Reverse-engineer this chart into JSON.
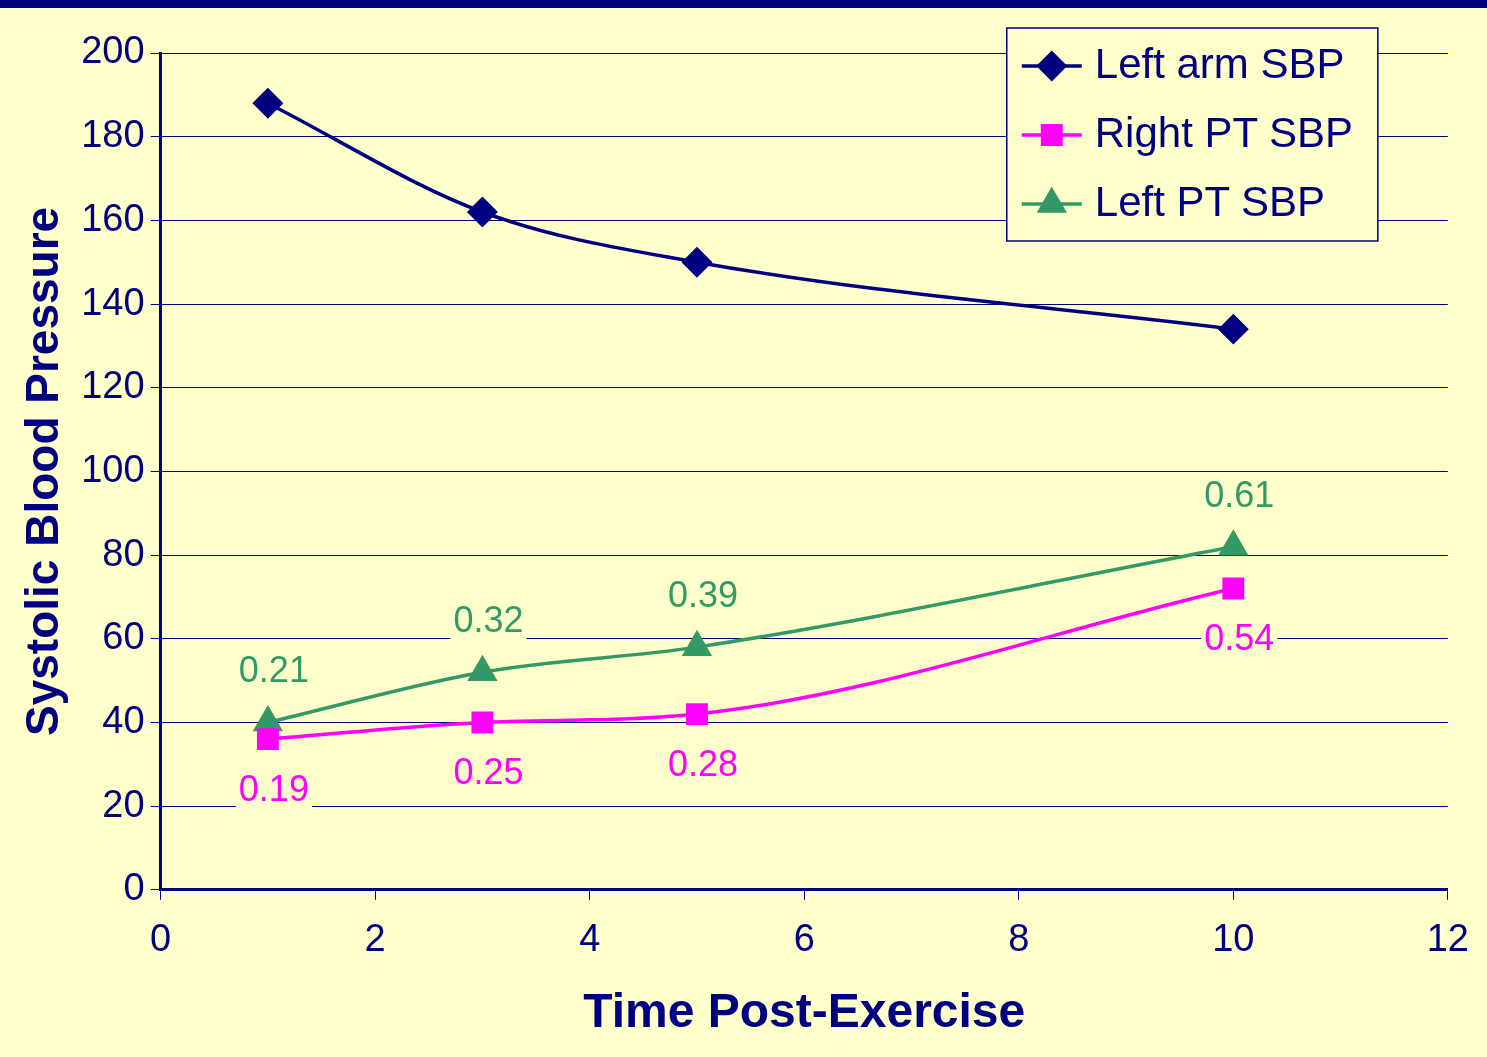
{
  "chart_data": {
    "type": "line",
    "xlabel": "Time Post-Exercise",
    "ylabel": "Systolic Blood Pressure",
    "x": [
      1,
      3,
      5,
      10
    ],
    "series": [
      {
        "name": "Left arm SBP",
        "color": "#000080",
        "marker": "diamond",
        "values": [
          188,
          162,
          150,
          134
        ]
      },
      {
        "name": "Right PT SBP",
        "color": "#ff00ff",
        "marker": "square",
        "values": [
          36,
          40,
          42,
          72
        ]
      },
      {
        "name": "Left PT SBP",
        "color": "#339966",
        "marker": "triangle",
        "values": [
          40,
          52,
          58,
          82
        ]
      }
    ],
    "xlim": [
      0,
      12
    ],
    "xticks": [
      0,
      2,
      4,
      6,
      8,
      10,
      12
    ],
    "ylim": [
      0,
      200
    ],
    "yticks": [
      0,
      20,
      40,
      60,
      80,
      100,
      120,
      140,
      160,
      180,
      200
    ],
    "grid": "y",
    "legend": "top right",
    "line_style": "solid",
    "annotations": [
      {
        "text": "0.21",
        "x": 1,
        "y": 40
      },
      {
        "text": "0.32",
        "x": 3,
        "y": 52
      },
      {
        "text": "0.39",
        "x": 5,
        "y": 58
      },
      {
        "text": "0.61",
        "x": 10,
        "y": 82
      },
      {
        "text": "0.19",
        "x": 1,
        "y": 36
      },
      {
        "text": "0.25",
        "x": 3,
        "y": 40
      },
      {
        "text": "0.28",
        "x": 5,
        "y": 42
      },
      {
        "text": "0.54",
        "x": 10,
        "y": 72
      }
    ]
  }
}
